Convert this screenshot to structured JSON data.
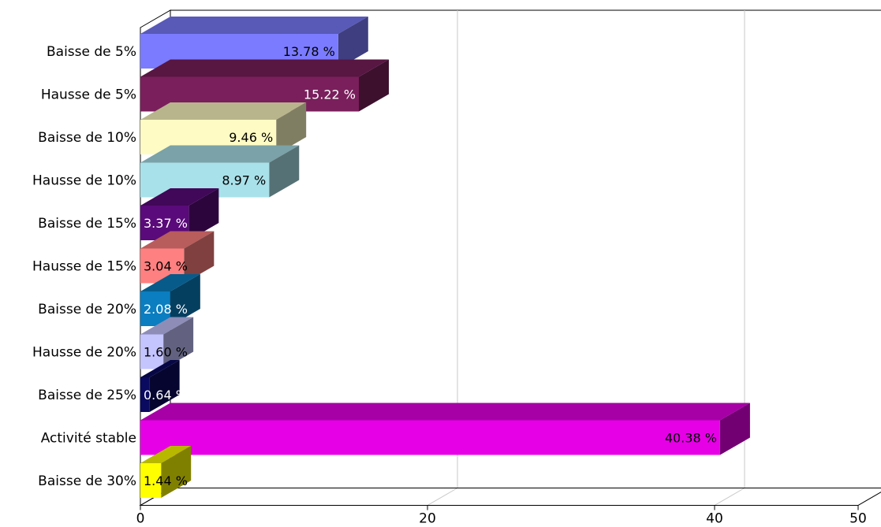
{
  "chart_data": {
    "type": "bar",
    "orientation": "horizontal",
    "three_d": true,
    "categories": [
      "Baisse de 5%",
      "Hausse de 5%",
      "Baisse de 10%",
      "Hausse de 10%",
      "Baisse de 15%",
      "Hausse de 15%",
      "Baisse de 20%",
      "Hausse de 20%",
      "Baisse de 25%",
      "Activité stable",
      "Baisse de 30%"
    ],
    "values": [
      13.78,
      15.22,
      9.46,
      8.97,
      3.37,
      3.04,
      2.08,
      1.6,
      0.64,
      40.38,
      1.44
    ],
    "value_labels": [
      "13.78 %",
      "15.22 %",
      "9.46 %",
      "8.97 %",
      "3.37 %",
      "3.04 %",
      "2.08 %",
      "1.60 %",
      "0.64 %",
      "40.38 %",
      "1.44 %"
    ],
    "colors": [
      "#7b7bff",
      "#7a1f5c",
      "#fffbc4",
      "#a9e1ea",
      "#5a0a7a",
      "#ff8080",
      "#0a7ec0",
      "#c4c4ff",
      "#0a0a60",
      "#e600e6",
      "#ffff00"
    ],
    "label_colors": [
      "#000000",
      "#ffffff",
      "#000000",
      "#000000",
      "#ffffff",
      "#000000",
      "#ffffff",
      "#000000",
      "#ffffff",
      "#000000",
      "#000000"
    ],
    "x_ticks": [
      0,
      20,
      40,
      50
    ],
    "xlim": [
      0,
      50
    ],
    "grid": true,
    "title": "",
    "xlabel": "",
    "ylabel": ""
  }
}
